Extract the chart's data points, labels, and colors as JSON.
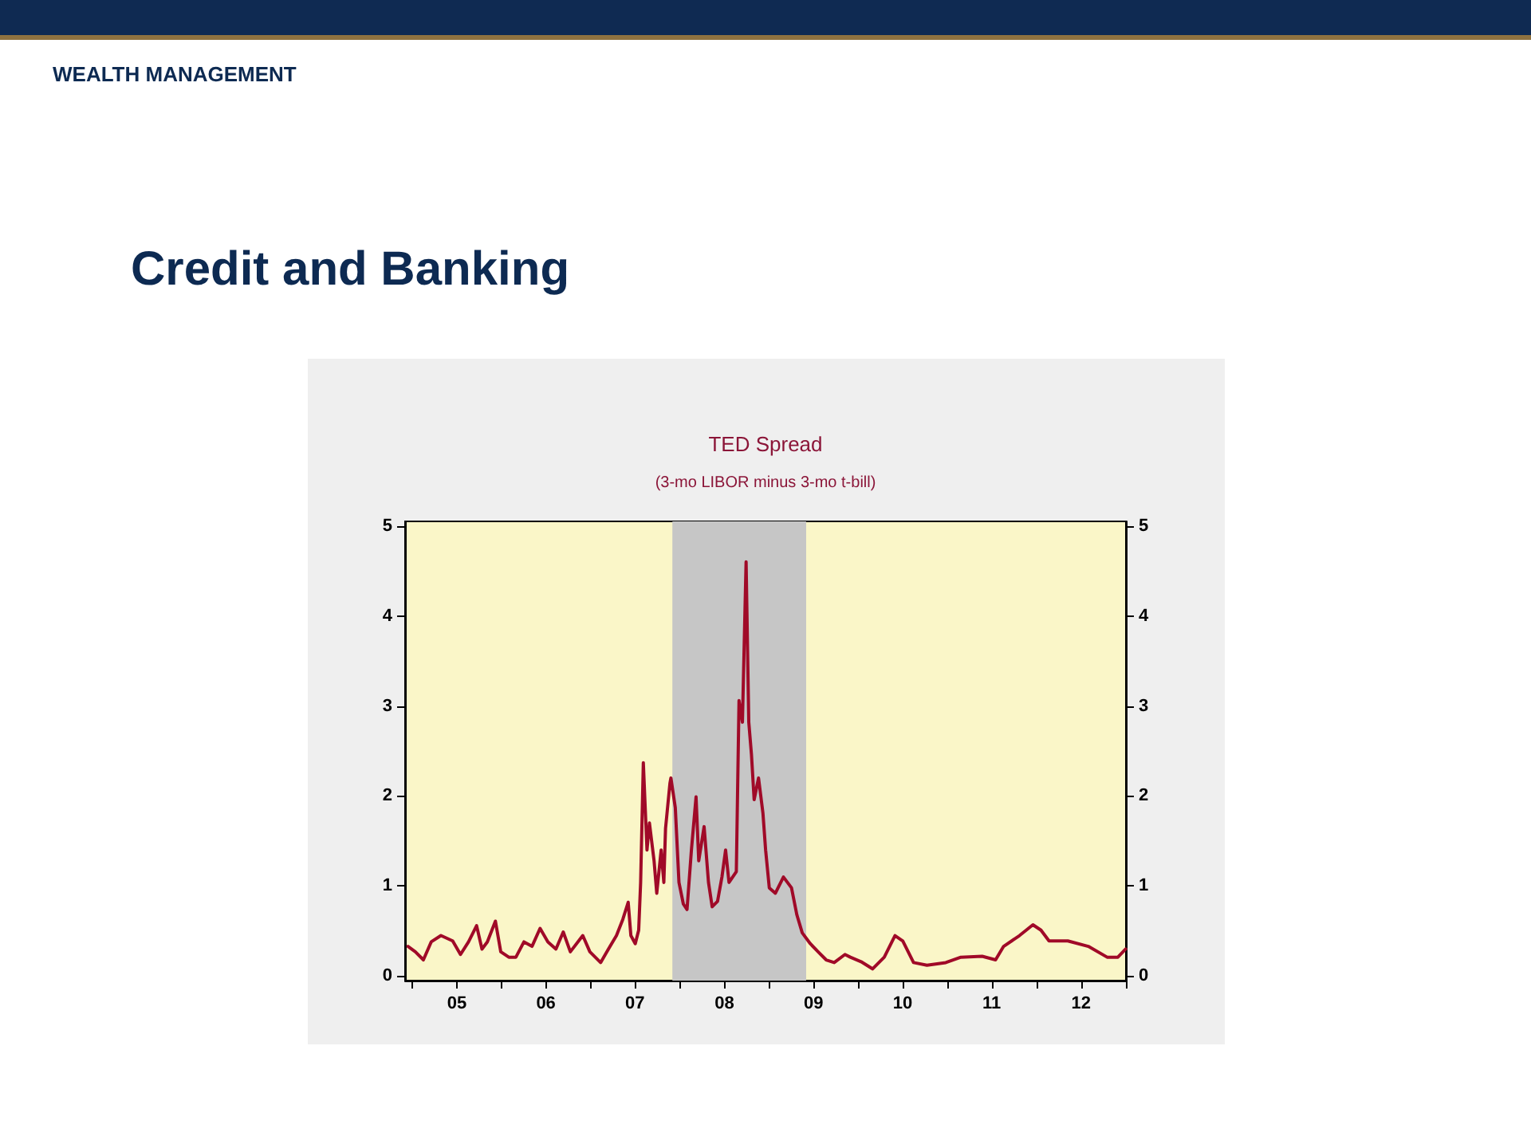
{
  "chart_data": {
    "type": "line",
    "title": "TED Spread",
    "subtitle": "(3-mo LIBOR minus 3-mo t-bill)",
    "annotations": [
      "WEALTH MANAGEMENT",
      "Credit and Banking"
    ],
    "x": [
      "2004-12-13",
      "2005-01-12",
      "2005-02-14",
      "2005-03-18",
      "2005-04-27",
      "2005-06-14",
      "2005-07-16",
      "2005-08-18",
      "2005-09-20",
      "2005-10-12",
      "2005-11-03",
      "2005-12-06",
      "2005-12-28",
      "2006-01-30",
      "2006-02-28",
      "2006-04-02",
      "2006-05-05",
      "2006-06-07",
      "2006-07-09",
      "2006-08-11",
      "2006-09-10",
      "2006-10-09",
      "2006-11-29",
      "2006-12-28",
      "2007-02-10",
      "2007-03-14",
      "2007-04-16",
      "2007-05-12",
      "2007-06-03",
      "2007-06-14",
      "2007-07-02",
      "2007-07-16",
      "2007-07-24",
      "2007-08-04",
      "2007-08-19",
      "2007-08-29",
      "2007-09-17",
      "2007-09-28",
      "2007-10-16",
      "2007-10-27",
      "2007-11-03",
      "2007-11-21",
      "2007-11-25",
      "2007-12-13",
      "2007-12-28",
      "2008-01-15",
      "2008-01-30",
      "2008-02-17",
      "2008-03-07",
      "2008-03-18",
      "2008-04-09",
      "2008-04-27",
      "2008-05-12",
      "2008-06-03",
      "2008-06-21",
      "2008-07-06",
      "2008-07-20",
      "2008-08-19",
      "2008-08-30",
      "2008-09-13",
      "2008-09-28",
      "2008-10-09",
      "2008-10-20",
      "2008-10-31",
      "2008-11-18",
      "2008-12-06",
      "2008-12-17",
      "2009-01-01",
      "2009-01-26",
      "2009-02-28",
      "2009-04-02",
      "2009-04-24",
      "2009-05-16",
      "2009-06-18",
      "2009-07-20",
      "2009-08-22",
      "2009-09-24",
      "2009-11-07",
      "2009-11-29",
      "2010-01-12",
      "2010-02-28",
      "2010-04-17",
      "2010-05-31",
      "2010-07-02",
      "2010-08-15",
      "2010-10-09",
      "2010-12-25",
      "2011-02-25",
      "2011-05-23",
      "2011-07-17",
      "2011-08-19",
      "2011-10-23",
      "2011-12-17",
      "2012-01-19",
      "2012-02-21",
      "2012-05-08",
      "2012-07-31",
      "2012-10-16",
      "2012-11-29",
      "2012-12-31"
    ],
    "series": [
      {
        "color": "#a00a28",
        "values": [
          0.33,
          0.27,
          0.18,
          0.38,
          0.45,
          0.39,
          0.24,
          0.38,
          0.56,
          0.3,
          0.38,
          0.61,
          0.27,
          0.21,
          0.21,
          0.38,
          0.33,
          0.53,
          0.38,
          0.3,
          0.49,
          0.27,
          0.45,
          0.27,
          0.15,
          0.3,
          0.45,
          0.63,
          0.82,
          0.45,
          0.36,
          0.51,
          1.04,
          2.37,
          1.4,
          1.7,
          1.28,
          0.92,
          1.4,
          1.04,
          1.64,
          2.14,
          2.2,
          1.87,
          1.04,
          0.8,
          0.74,
          1.4,
          1.99,
          1.28,
          1.66,
          1.04,
          0.77,
          0.83,
          1.1,
          1.4,
          1.04,
          1.16,
          3.06,
          2.82,
          4.6,
          2.82,
          2.46,
          1.96,
          2.2,
          1.81,
          1.4,
          0.98,
          0.92,
          1.1,
          0.98,
          0.68,
          0.48,
          0.36,
          0.27,
          0.18,
          0.15,
          0.24,
          0.21,
          0.16,
          0.08,
          0.21,
          0.45,
          0.39,
          0.15,
          0.12,
          0.15,
          0.21,
          0.22,
          0.18,
          0.33,
          0.45,
          0.57,
          0.51,
          0.39,
          0.39,
          0.33,
          0.21,
          0.21,
          0.3
        ]
      }
    ],
    "xlim": [
      "2004-12-01",
      "2013-01-01"
    ],
    "xticks": [
      {
        "value": "2005-01-01",
        "label": null
      },
      {
        "value": "2005-07-01",
        "label": "05"
      },
      {
        "value": "2006-01-01",
        "label": null
      },
      {
        "value": "2006-07-01",
        "label": "06"
      },
      {
        "value": "2007-01-01",
        "label": null
      },
      {
        "value": "2007-07-01",
        "label": "07"
      },
      {
        "value": "2008-01-01",
        "label": null
      },
      {
        "value": "2008-07-01",
        "label": "08"
      },
      {
        "value": "2009-01-01",
        "label": null
      },
      {
        "value": "2009-07-01",
        "label": "09"
      },
      {
        "value": "2010-01-01",
        "label": null
      },
      {
        "value": "2010-07-01",
        "label": "10"
      },
      {
        "value": "2011-01-01",
        "label": null
      },
      {
        "value": "2011-07-01",
        "label": "11"
      },
      {
        "value": "2012-01-01",
        "label": null
      },
      {
        "value": "2012-07-01",
        "label": "12"
      },
      {
        "value": "2013-01-01",
        "label": null
      }
    ],
    "ylim": [
      -0.05,
      5.05
    ],
    "yticks": [
      0,
      1,
      2,
      3,
      4,
      5
    ],
    "y2lim": [
      -0.05,
      5.05
    ],
    "y2ticks": [
      0,
      1,
      2,
      3,
      4,
      5
    ],
    "bands": [
      {
        "axis": "x",
        "from": "2007-12-01",
        "to": "2009-06-01",
        "color": "#c6c6c6"
      }
    ],
    "marker": "none",
    "line_style": "solid"
  }
}
